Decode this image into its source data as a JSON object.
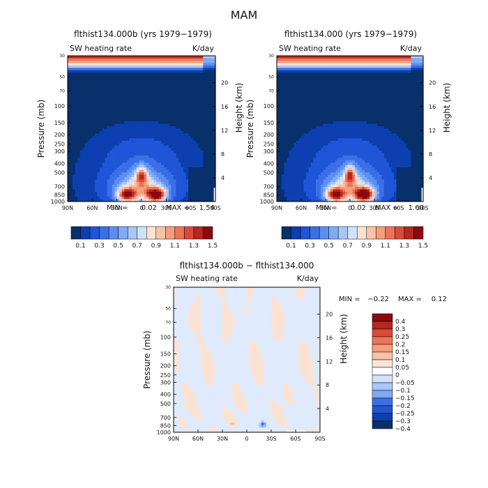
{
  "page_title": "MAM",
  "chart_data": [
    {
      "type": "heatmap",
      "title": "flthist134.000b (yrs 1979−1979)",
      "left_label": "SW heating rate",
      "right_label": "K/day",
      "ylabel": "Pressure (mb)",
      "y2label": "Height (km)",
      "xticks": [
        "90N",
        "60N",
        "30N",
        "0",
        "30S",
        "60S",
        "90S"
      ],
      "yticks": [
        30,
        50,
        70,
        100,
        150,
        200,
        250,
        300,
        400,
        500,
        700,
        850,
        1000
      ],
      "y2ticks": [
        20,
        16,
        12,
        8,
        4
      ],
      "stats": {
        "min_label": "MIN =",
        "min": "0.02",
        "max_label": "MAX =",
        "max": "1.54"
      },
      "colorbar": {
        "levels": [
          "0.1",
          "0.3",
          "0.5",
          "0.7",
          "0.9",
          "1.1",
          "1.3",
          "1.5"
        ],
        "colors": [
          "#08306b",
          "#0d3fb0",
          "#1f55d6",
          "#3a6fe6",
          "#5b8ef0",
          "#7faaf4",
          "#a8c6f7",
          "#cfe1fb",
          "#fbe3d4",
          "#f8c3a6",
          "#f59e7b",
          "#ed7358",
          "#da4a3a",
          "#b8261f",
          "#8b0a10"
        ]
      },
      "blobs": [
        {
          "lat": -18,
          "p": 850,
          "peak": 1.54
        },
        {
          "lat": 18,
          "p": 850,
          "peak": 1.3
        },
        {
          "lat": 0,
          "p": 530,
          "peak": 1.05
        }
      ]
    },
    {
      "type": "heatmap",
      "title": "flthist134.000 (yrs 1979−1979)",
      "left_label": "SW heating rate",
      "right_label": "K/day",
      "ylabel": "Pressure (mb)",
      "y2label": "Height (km)",
      "xticks": [
        "90N",
        "60N",
        "30N",
        "0",
        "30S",
        "60S",
        "90S"
      ],
      "yticks": [
        30,
        50,
        70,
        100,
        150,
        200,
        250,
        300,
        400,
        500,
        700,
        850,
        1000
      ],
      "y2ticks": [
        20,
        16,
        12,
        8,
        4
      ],
      "stats": {
        "min_label": "MIN =",
        "min": "0.02",
        "max_label": "MAX =",
        "max": "1.60"
      },
      "colorbar": {
        "levels": [
          "0.1",
          "0.3",
          "0.5",
          "0.7",
          "0.9",
          "1.1",
          "1.3",
          "1.5"
        ],
        "colors": [
          "#08306b",
          "#0d3fb0",
          "#1f55d6",
          "#3a6fe6",
          "#5b8ef0",
          "#7faaf4",
          "#a8c6f7",
          "#cfe1fb",
          "#fbe3d4",
          "#f8c3a6",
          "#f59e7b",
          "#ed7358",
          "#da4a3a",
          "#b8261f",
          "#8b0a10"
        ]
      },
      "blobs": [
        {
          "lat": -18,
          "p": 850,
          "peak": 1.6
        },
        {
          "lat": 18,
          "p": 850,
          "peak": 1.35
        },
        {
          "lat": 0,
          "p": 520,
          "peak": 1.1
        }
      ]
    },
    {
      "type": "heatmap",
      "title": "flthist134.000b − flthist134.000",
      "left_label": "SW heating rate",
      "right_label": "K/day",
      "ylabel": "Pressure (mb)",
      "y2label": "Height (km)",
      "xticks": [
        "90N",
        "60N",
        "30N",
        "0",
        "30S",
        "60S",
        "90S"
      ],
      "yticks": [
        30,
        50,
        70,
        100,
        150,
        200,
        250,
        300,
        400,
        500,
        700,
        850,
        1000
      ],
      "y2ticks": [
        20,
        16,
        12,
        8,
        4
      ],
      "stats": {
        "min_label": "MIN =",
        "min": "−0.22",
        "max_label": "MAX =",
        "max": "0.12"
      },
      "colorbar": {
        "levels": [
          "0.4",
          "0.3",
          "0.25",
          "0.2",
          "0.15",
          "0.1",
          "0.05",
          "0",
          "−0.05",
          "−0.1",
          "−0.15",
          "−0.2",
          "−0.25",
          "−0.3",
          "−0.4"
        ],
        "colors": [
          "#8b0a10",
          "#b8261f",
          "#da4a3a",
          "#ed7358",
          "#f59e7b",
          "#f8c3a6",
          "#fbe3d4",
          "#ffffff",
          "#cfe1fb",
          "#a8c6f7",
          "#7faaf4",
          "#3a6fe6",
          "#1f55d6",
          "#0d3fb0",
          "#08306b"
        ]
      },
      "features": [
        {
          "lat": -20,
          "p": 830,
          "value": -0.22
        },
        {
          "lat": 18,
          "p": 800,
          "value": 0.12
        }
      ]
    }
  ]
}
